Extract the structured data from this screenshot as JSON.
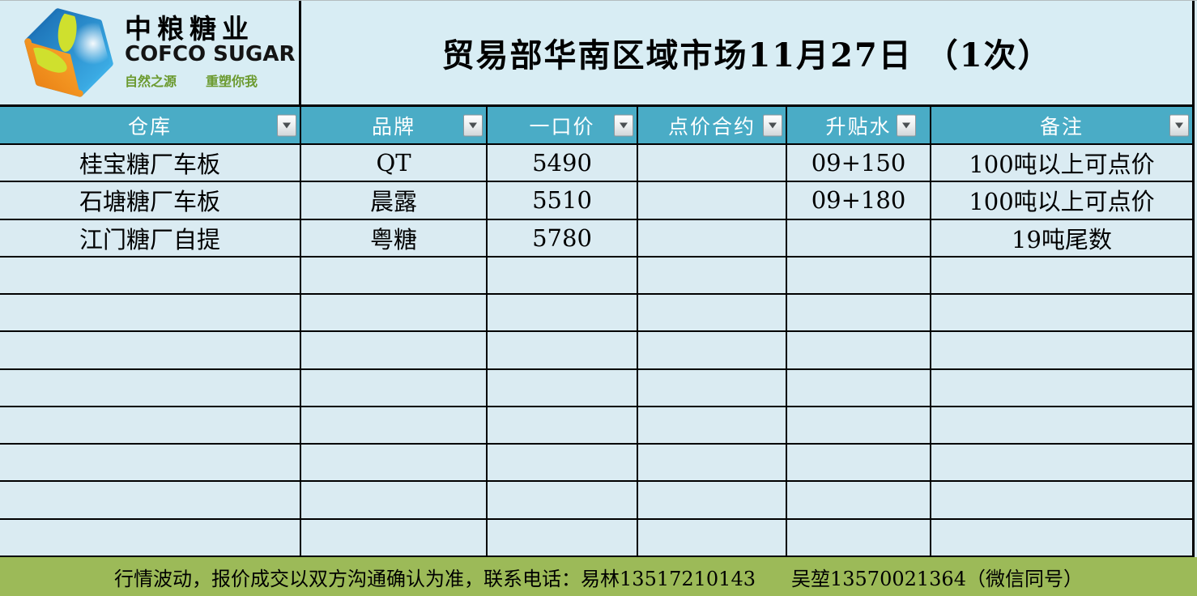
{
  "brand": {
    "cn_name": "中粮糖业",
    "en_name": "COFCO SUGAR",
    "slogan_left": "自然之源",
    "slogan_right": "重塑你我"
  },
  "title": "贸易部华南区域市场11月27日 （1次）",
  "table": {
    "columns": [
      {
        "key": "warehouse",
        "label": "仓库"
      },
      {
        "key": "brand",
        "label": "品牌"
      },
      {
        "key": "fixed-price",
        "label": "一口价"
      },
      {
        "key": "pricing-contract",
        "label": "点价合约"
      },
      {
        "key": "premium",
        "label": "升贴水"
      },
      {
        "key": "remark",
        "label": "备注"
      }
    ],
    "rows": [
      [
        "桂宝糖厂车板",
        "QT",
        "5490",
        "",
        "09+150",
        "100吨以上可点价"
      ],
      [
        "石塘糖厂车板",
        "晨露",
        "5510",
        "",
        "09+180",
        "100吨以上可点价"
      ],
      [
        "江门糖厂自提",
        "粤糖",
        "5780",
        "",
        "",
        "19吨尾数"
      ],
      [
        "",
        "",
        "",
        "",
        "",
        ""
      ],
      [
        "",
        "",
        "",
        "",
        "",
        ""
      ],
      [
        "",
        "",
        "",
        "",
        "",
        ""
      ],
      [
        "",
        "",
        "",
        "",
        "",
        ""
      ],
      [
        "",
        "",
        "",
        "",
        "",
        ""
      ],
      [
        "",
        "",
        "",
        "",
        "",
        ""
      ],
      [
        "",
        "",
        "",
        "",
        "",
        ""
      ],
      [
        "",
        "",
        "",
        "",
        "",
        ""
      ]
    ]
  },
  "footer": {
    "notice": "行情波动，报价成交以双方沟通确认为准，联系电话：易林13517210143",
    "contact_secondary": "吴堃13570021364（微信同号）"
  },
  "colors": {
    "header_teal": "#4aacc6",
    "row_light_blue": "#daebf2",
    "panel_light_blue": "#d8edf4",
    "footer_green": "#9cba58",
    "slogan_green": "#6b9a2f",
    "border_black": "#000000",
    "logo_blue_dark": "#1565ad",
    "logo_blue_light": "#45bdf2",
    "logo_orange": "#f1891c",
    "logo_yellow_green": "#cfe02e"
  }
}
